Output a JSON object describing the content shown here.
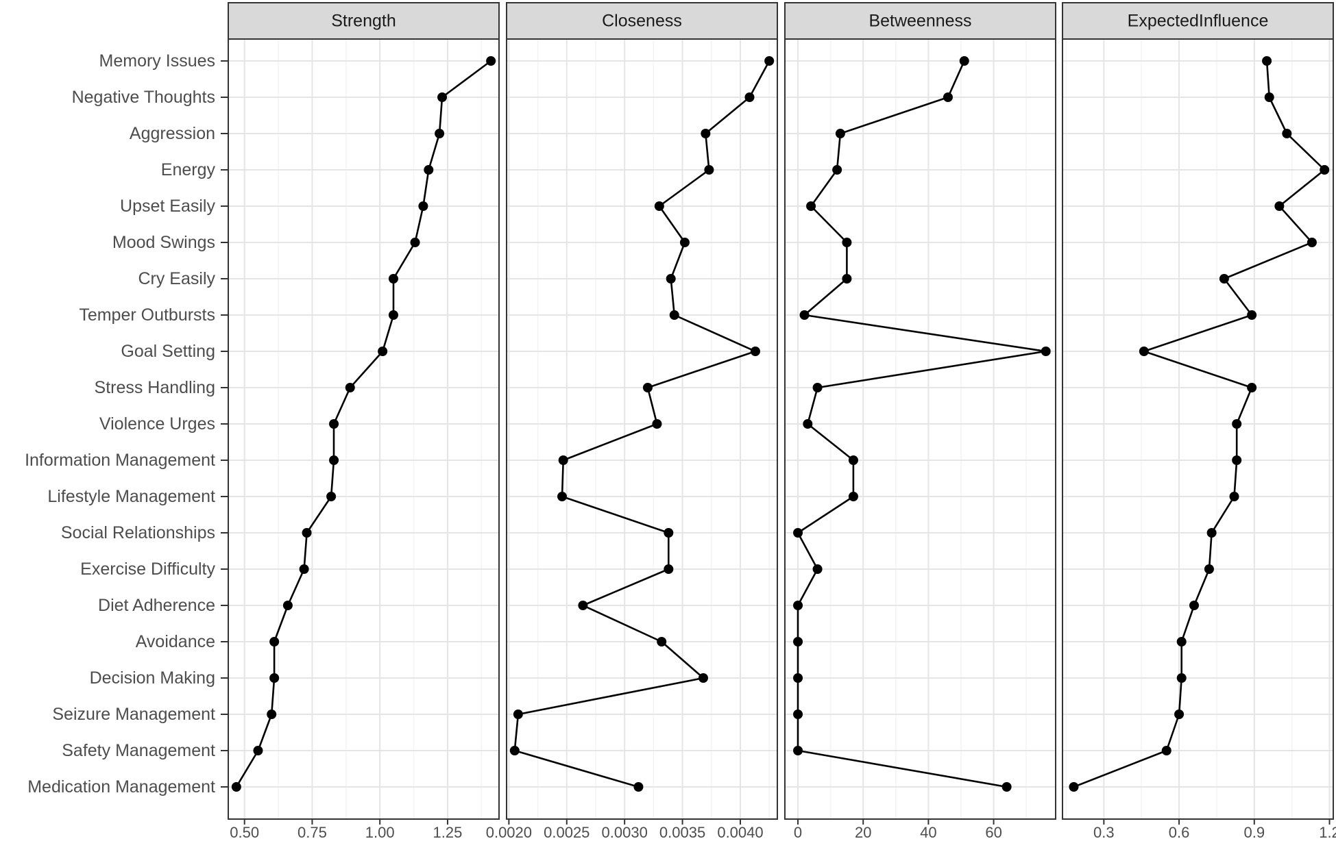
{
  "chart_data": {
    "type": "line",
    "variables": [
      "Memory Issues",
      "Negative Thoughts",
      "Aggression",
      "Energy",
      "Upset Easily",
      "Mood Swings",
      "Cry Easily",
      "Temper Outbursts",
      "Goal Setting",
      "Stress Handling",
      "Violence Urges",
      "Information Management",
      "Lifestyle Management",
      "Social Relationships",
      "Exercise Difficulty",
      "Diet Adherence",
      "Avoidance",
      "Decision Making",
      "Seizure Management",
      "Safety Management",
      "Medication Management"
    ],
    "panels": [
      {
        "title": "Strength",
        "xlim": [
          0.44,
          1.44
        ],
        "ticks": [
          0.5,
          0.75,
          1.0,
          1.25
        ],
        "tick_labels": [
          "0.50",
          "0.75",
          "1.00",
          "1.25"
        ],
        "values": [
          1.41,
          1.23,
          1.22,
          1.18,
          1.16,
          1.13,
          1.05,
          1.05,
          1.01,
          0.89,
          0.83,
          0.83,
          0.82,
          0.73,
          0.72,
          0.66,
          0.61,
          0.61,
          0.6,
          0.55,
          0.47
        ]
      },
      {
        "title": "Closeness",
        "xlim": [
          0.00198,
          0.00432
        ],
        "ticks": [
          0.002,
          0.0025,
          0.003,
          0.0035,
          0.004
        ],
        "tick_labels": [
          "0.0020",
          "0.0025",
          "0.0030",
          "0.0035",
          "0.0040"
        ],
        "values": [
          0.00425,
          0.00408,
          0.0037,
          0.00373,
          0.0033,
          0.00352,
          0.0034,
          0.00343,
          0.00413,
          0.0032,
          0.00328,
          0.00247,
          0.00246,
          0.00338,
          0.00338,
          0.00264,
          0.00332,
          0.00368,
          0.00208,
          0.00205,
          0.00312
        ]
      },
      {
        "title": "Betweenness",
        "xlim": [
          -4,
          79
        ],
        "ticks": [
          0,
          20,
          40,
          60
        ],
        "tick_labels": [
          "0",
          "20",
          "40",
          "60"
        ],
        "values": [
          51,
          46,
          13,
          12,
          4,
          15,
          15,
          2,
          76,
          6,
          3,
          17,
          17,
          0,
          6,
          0,
          0,
          0,
          0,
          0,
          64
        ]
      },
      {
        "title": "ExpectedInfluence",
        "xlim": [
          0.135,
          1.215
        ],
        "ticks": [
          0.3,
          0.6,
          0.9,
          1.2
        ],
        "tick_labels": [
          "0.3",
          "0.6",
          "0.9",
          "1.2"
        ],
        "values": [
          0.95,
          0.96,
          1.03,
          1.18,
          1.0,
          1.13,
          0.78,
          0.89,
          0.46,
          0.89,
          0.83,
          0.83,
          0.82,
          0.73,
          0.72,
          0.66,
          0.61,
          0.61,
          0.6,
          0.55,
          0.18
        ]
      }
    ],
    "grid": true,
    "legend": "none",
    "xlabel": "",
    "ylabel": ""
  },
  "style": {
    "panel_border": "#333333",
    "strip_fill": "#d9d9d9",
    "grid_major": "#e5e5e5",
    "grid_minor": "#f3f3f3",
    "line_color": "#000000",
    "point_color": "#000000",
    "label_color": "#4d4d4d",
    "strip_text_color": "#1a1a1a"
  }
}
